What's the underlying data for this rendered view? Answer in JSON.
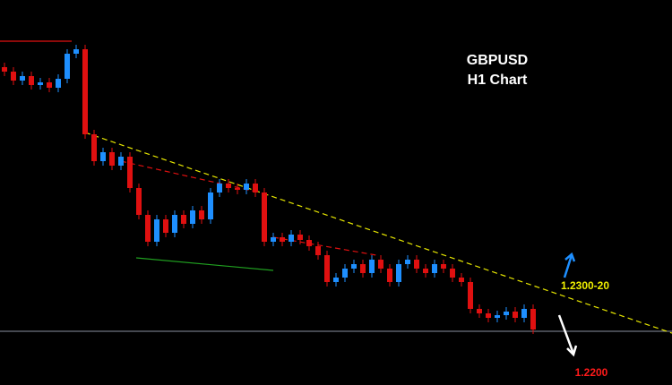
{
  "chart_data": {
    "type": "candlestick",
    "title": "GBPUSD",
    "subtitle": "H1 Chart",
    "annotations": [
      {
        "text": "1.2300-20",
        "color": "#f0f000"
      },
      {
        "text": "1.2200",
        "color": "#ff1a1a"
      }
    ],
    "ylim": [
      1.221,
      1.264
    ],
    "up_color": "#1e8fff",
    "down_color": "#e01010",
    "open": [
      1.2565,
      1.256,
      1.255,
      1.2555,
      1.2545,
      1.2548,
      1.2542,
      1.2552,
      1.258,
      1.2585,
      1.249,
      1.246,
      1.247,
      1.2455,
      1.2465,
      1.243,
      1.24,
      1.237,
      1.2395,
      1.238,
      1.24,
      1.239,
      1.2405,
      1.2395,
      1.2425,
      1.2435,
      1.243,
      1.2428,
      1.2435,
      1.2425,
      1.237,
      1.2375,
      1.237,
      1.2378,
      1.2372,
      1.2365,
      1.2355,
      1.2325,
      1.233,
      1.234,
      1.2345,
      1.2335,
      1.235,
      1.234,
      1.2325,
      1.2345,
      1.235,
      1.234,
      1.2335,
      1.2345,
      1.234,
      1.233,
      1.2325,
      1.2295,
      1.229,
      1.2285,
      1.2288,
      1.2292,
      1.2285,
      1.2295
    ],
    "high": [
      1.257,
      1.2565,
      1.256,
      1.256,
      1.2553,
      1.2553,
      1.2557,
      1.2585,
      1.259,
      1.259,
      1.2495,
      1.2475,
      1.2475,
      1.247,
      1.247,
      1.2435,
      1.2405,
      1.24,
      1.24,
      1.2405,
      1.2405,
      1.241,
      1.241,
      1.243,
      1.244,
      1.244,
      1.2435,
      1.244,
      1.244,
      1.243,
      1.238,
      1.238,
      1.2383,
      1.2383,
      1.2377,
      1.237,
      1.236,
      1.2335,
      1.2345,
      1.235,
      1.235,
      1.2355,
      1.2355,
      1.2345,
      1.235,
      1.2355,
      1.2355,
      1.2345,
      1.235,
      1.235,
      1.2345,
      1.2335,
      1.233,
      1.23,
      1.2295,
      1.2293,
      1.2297,
      1.2297,
      1.23,
      1.23
    ],
    "low": [
      1.2555,
      1.2545,
      1.2545,
      1.254,
      1.254,
      1.2537,
      1.2537,
      1.2547,
      1.2575,
      1.2485,
      1.2455,
      1.2455,
      1.245,
      1.245,
      1.2425,
      1.2395,
      1.2365,
      1.2365,
      1.2375,
      1.2375,
      1.2385,
      1.2385,
      1.239,
      1.239,
      1.242,
      1.2425,
      1.2423,
      1.2423,
      1.242,
      1.2365,
      1.2365,
      1.2365,
      1.2365,
      1.2367,
      1.236,
      1.235,
      1.232,
      1.232,
      1.2325,
      1.2335,
      1.233,
      1.233,
      1.2335,
      1.232,
      1.232,
      1.234,
      1.2335,
      1.233,
      1.233,
      1.2335,
      1.2325,
      1.232,
      1.229,
      1.2285,
      1.228,
      1.228,
      1.2283,
      1.228,
      1.228,
      1.2267
    ],
    "close": [
      1.256,
      1.255,
      1.2555,
      1.2545,
      1.2548,
      1.2542,
      1.2552,
      1.258,
      1.2585,
      1.249,
      1.246,
      1.247,
      1.2455,
      1.2465,
      1.243,
      1.24,
      1.237,
      1.2395,
      1.238,
      1.24,
      1.239,
      1.2405,
      1.2395,
      1.2425,
      1.2435,
      1.243,
      1.2428,
      1.2435,
      1.2425,
      1.237,
      1.2375,
      1.237,
      1.2378,
      1.2372,
      1.2365,
      1.2355,
      1.2325,
      1.233,
      1.234,
      1.2345,
      1.2335,
      1.235,
      1.234,
      1.2325,
      1.2345,
      1.235,
      1.234,
      1.2335,
      1.2345,
      1.234,
      1.233,
      1.2325,
      1.2295,
      1.229,
      1.2285,
      1.2288,
      1.2292,
      1.2285,
      1.2295,
      1.2272
    ],
    "hline": {
      "value": 1.227,
      "color": "#8a8fa0"
    },
    "lines": [
      {
        "x": [
          9,
          74.5
        ],
        "y": [
          1.2492,
          1.2268
        ],
        "color": "#e6e600",
        "dashed": true
      },
      {
        "x": [
          -0.5,
          7.5
        ],
        "y": [
          1.2594,
          1.2594
        ],
        "color": "#e01010",
        "dashed": false
      },
      {
        "x": [
          13,
          28.5
        ],
        "y": [
          1.246,
          1.2425
        ],
        "color": "#e01010",
        "dashed": true
      },
      {
        "x": [
          14.7,
          30
        ],
        "y": [
          1.2352,
          1.2338
        ],
        "color": "#20a020",
        "dashed": false
      },
      {
        "x": [
          30,
          41.5
        ],
        "y": [
          1.2375,
          1.2355
        ],
        "color": "#e01010",
        "dashed": true
      }
    ]
  }
}
